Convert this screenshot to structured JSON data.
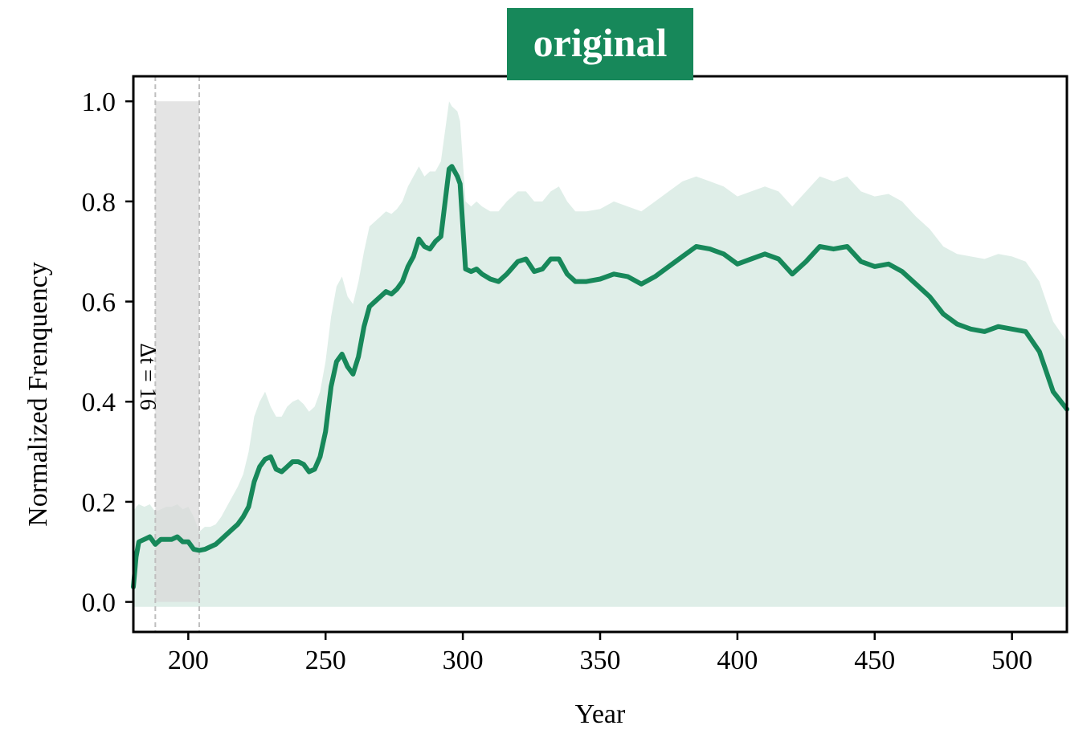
{
  "colors": {
    "line": "#17885a",
    "band": "#dfeee8",
    "title_bg": "#17885a",
    "window_fill": "#d9d9d9",
    "window_line": "#bfbfbf"
  },
  "chart_data": {
    "type": "line",
    "title": "original",
    "xlabel": "Year",
    "ylabel": "Normalized Frenquency",
    "xlim": [
      180,
      520
    ],
    "ylim": [
      -0.06,
      1.05
    ],
    "xticks": [
      200,
      250,
      300,
      350,
      400,
      450,
      500
    ],
    "yticks": [
      0.0,
      0.2,
      0.4,
      0.6,
      0.8,
      1.0
    ],
    "xtick_labels": [
      "200",
      "250",
      "300",
      "350",
      "400",
      "450",
      "500"
    ],
    "ytick_labels": [
      "0.0",
      "0.2",
      "0.4",
      "0.6",
      "0.8",
      "1.0"
    ],
    "grid": false,
    "window": {
      "start": 188,
      "end": 204,
      "ymax": 1.0,
      "label": "Δt = 16"
    },
    "series": [
      {
        "x": [
          180,
          181,
          182,
          184,
          186,
          188,
          190,
          192,
          194,
          196,
          198,
          200,
          202,
          204,
          206,
          208,
          210,
          212,
          214,
          216,
          218,
          220,
          222,
          224,
          226,
          228,
          230,
          232,
          234,
          236,
          238,
          240,
          242,
          244,
          246,
          248,
          250,
          252,
          254,
          256,
          258,
          260,
          262,
          264,
          266,
          268,
          270,
          272,
          274,
          276,
          278,
          280,
          282,
          284,
          286,
          288,
          290,
          292,
          294,
          295,
          296,
          298,
          299,
          301,
          303,
          305,
          307,
          310,
          313,
          316,
          320,
          323,
          326,
          329,
          332,
          335,
          338,
          341,
          345,
          350,
          355,
          360,
          365,
          370,
          375,
          380,
          385,
          390,
          395,
          400,
          405,
          410,
          415,
          420,
          425,
          430,
          435,
          440,
          445,
          450,
          455,
          460,
          465,
          470,
          475,
          480,
          485,
          490,
          495,
          500,
          505,
          510,
          515,
          520
        ],
        "y": [
          0.03,
          0.09,
          0.12,
          0.125,
          0.13,
          0.115,
          0.125,
          0.125,
          0.125,
          0.13,
          0.12,
          0.12,
          0.105,
          0.103,
          0.105,
          0.11,
          0.115,
          0.125,
          0.135,
          0.145,
          0.155,
          0.17,
          0.19,
          0.24,
          0.27,
          0.285,
          0.29,
          0.265,
          0.26,
          0.27,
          0.28,
          0.28,
          0.275,
          0.26,
          0.265,
          0.29,
          0.34,
          0.43,
          0.48,
          0.495,
          0.47,
          0.455,
          0.49,
          0.55,
          0.59,
          0.6,
          0.61,
          0.62,
          0.615,
          0.625,
          0.64,
          0.67,
          0.69,
          0.725,
          0.71,
          0.705,
          0.72,
          0.73,
          0.82,
          0.865,
          0.87,
          0.85,
          0.835,
          0.665,
          0.66,
          0.665,
          0.655,
          0.645,
          0.64,
          0.655,
          0.68,
          0.685,
          0.66,
          0.665,
          0.685,
          0.685,
          0.655,
          0.64,
          0.64,
          0.645,
          0.655,
          0.65,
          0.635,
          0.65,
          0.67,
          0.69,
          0.71,
          0.705,
          0.695,
          0.675,
          0.685,
          0.695,
          0.685,
          0.655,
          0.68,
          0.71,
          0.705,
          0.71,
          0.68,
          0.67,
          0.675,
          0.66,
          0.635,
          0.61,
          0.575,
          0.555,
          0.545,
          0.54,
          0.55,
          0.545,
          0.54,
          0.5,
          0.42,
          0.385
        ],
        "lower": [
          -0.01,
          -0.01,
          -0.01,
          -0.01,
          -0.01,
          -0.01,
          -0.01,
          -0.01,
          -0.01,
          -0.01,
          -0.01,
          -0.01,
          -0.01,
          -0.01,
          -0.01,
          -0.01,
          -0.01,
          -0.01,
          -0.01,
          -0.01,
          -0.01,
          -0.01,
          -0.01,
          -0.01,
          -0.01,
          -0.01,
          -0.01,
          -0.01,
          -0.01,
          -0.01,
          -0.01,
          -0.01,
          -0.01,
          -0.01,
          -0.01,
          -0.01,
          -0.01,
          -0.01,
          -0.01,
          -0.01,
          -0.01,
          -0.01,
          -0.01,
          -0.01,
          -0.01,
          -0.01,
          -0.01,
          -0.01,
          -0.01,
          -0.01,
          -0.01,
          -0.01,
          -0.01,
          -0.01,
          -0.01,
          -0.01,
          -0.01,
          -0.01,
          -0.01,
          -0.01,
          -0.01,
          -0.01,
          -0.01,
          -0.01,
          -0.01,
          -0.01,
          -0.01,
          -0.01,
          -0.01,
          -0.01,
          -0.01,
          -0.01,
          -0.01,
          -0.01,
          -0.01,
          -0.01,
          -0.01,
          -0.01,
          -0.01,
          -0.01,
          -0.01,
          -0.01,
          -0.01,
          -0.01,
          -0.01,
          -0.01,
          -0.01,
          -0.01,
          -0.01,
          -0.01,
          -0.01,
          -0.01,
          -0.01,
          -0.01,
          -0.01,
          -0.01,
          -0.01,
          -0.01,
          -0.01,
          -0.01,
          -0.01,
          -0.01,
          -0.01,
          -0.01,
          -0.01,
          -0.01,
          -0.01,
          -0.01,
          -0.01,
          -0.01,
          -0.01,
          -0.01,
          -0.01,
          -0.01
        ],
        "upper": [
          0.18,
          0.19,
          0.195,
          0.19,
          0.195,
          0.18,
          0.185,
          0.19,
          0.19,
          0.195,
          0.185,
          0.19,
          0.17,
          0.14,
          0.15,
          0.15,
          0.155,
          0.17,
          0.19,
          0.21,
          0.23,
          0.255,
          0.3,
          0.37,
          0.4,
          0.42,
          0.39,
          0.37,
          0.37,
          0.39,
          0.4,
          0.405,
          0.395,
          0.38,
          0.39,
          0.42,
          0.48,
          0.57,
          0.63,
          0.65,
          0.61,
          0.595,
          0.64,
          0.7,
          0.75,
          0.76,
          0.77,
          0.78,
          0.775,
          0.785,
          0.8,
          0.83,
          0.85,
          0.87,
          0.85,
          0.86,
          0.86,
          0.88,
          0.96,
          1.0,
          0.99,
          0.98,
          0.96,
          0.8,
          0.79,
          0.8,
          0.79,
          0.78,
          0.78,
          0.8,
          0.82,
          0.82,
          0.8,
          0.8,
          0.82,
          0.83,
          0.8,
          0.78,
          0.78,
          0.785,
          0.8,
          0.79,
          0.78,
          0.8,
          0.82,
          0.84,
          0.85,
          0.84,
          0.83,
          0.81,
          0.82,
          0.83,
          0.82,
          0.79,
          0.82,
          0.85,
          0.84,
          0.85,
          0.82,
          0.81,
          0.815,
          0.8,
          0.77,
          0.745,
          0.71,
          0.695,
          0.69,
          0.685,
          0.695,
          0.69,
          0.68,
          0.64,
          0.56,
          0.52
        ]
      }
    ]
  }
}
